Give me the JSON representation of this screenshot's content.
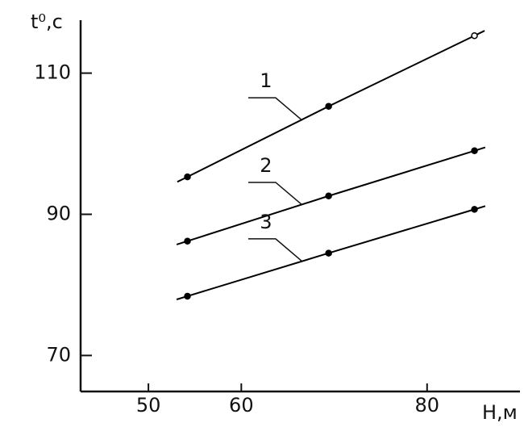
{
  "chart_data": {
    "type": "line",
    "y_label": "t⁰,c",
    "x_label": "H,м",
    "x": [
      54.2,
      69.4,
      85.1
    ],
    "series": [
      {
        "name": "1",
        "color": "#000000",
        "values": [
          95.3,
          105.3,
          115.3
        ]
      },
      {
        "name": "2",
        "color": "#000000",
        "values": [
          86.2,
          92.6,
          99.0
        ]
      },
      {
        "name": "3",
        "color": "#000000",
        "values": [
          78.4,
          84.5,
          90.7
        ]
      }
    ],
    "xlim": [
      42.7,
      90
    ],
    "xticks": [
      50,
      60,
      80
    ],
    "ylim": [
      64.9,
      117.5
    ],
    "yticks": [
      70,
      90,
      110
    ],
    "grid": false
  }
}
